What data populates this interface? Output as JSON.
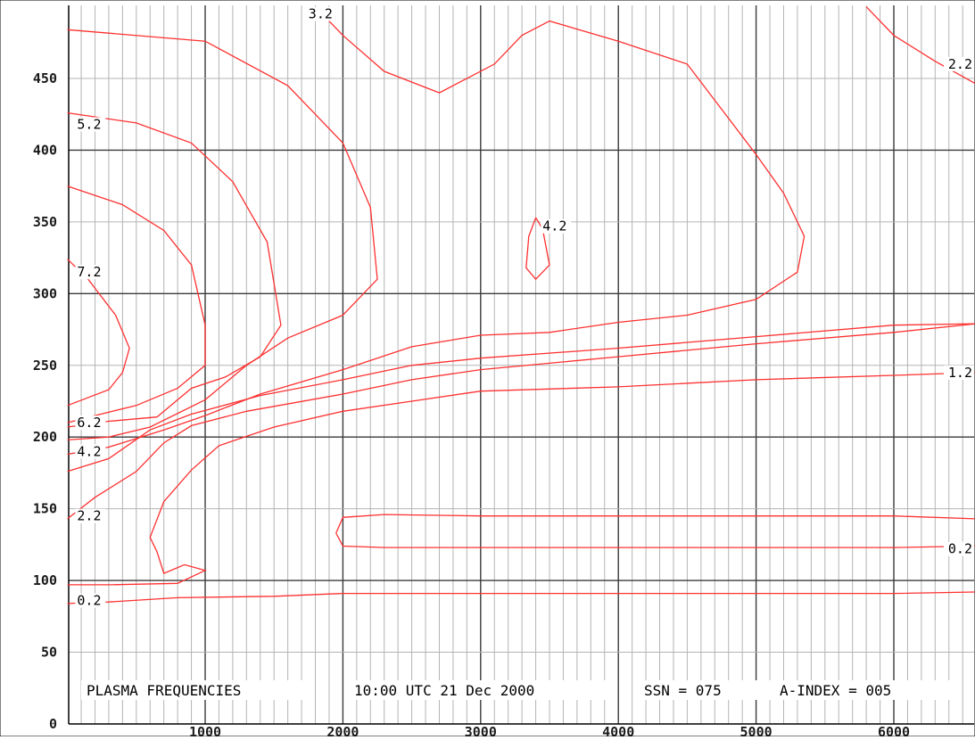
{
  "chart_data": {
    "type": "contour",
    "title": "PLASMA FREQUENCIES",
    "info": {
      "time": "10:00 UTC 21 Dec 2000",
      "ssn": "SSN = 075",
      "a_index": "A-INDEX = 005"
    },
    "xlim": [
      0,
      6600
    ],
    "ylim": [
      0,
      500
    ],
    "x_ticks": [
      1000,
      2000,
      3000,
      4000,
      5000,
      6000
    ],
    "y_ticks": [
      0,
      50,
      100,
      150,
      200,
      250,
      300,
      350,
      400,
      450
    ],
    "grid": {
      "major": true,
      "minor_x_step": 100
    },
    "line_color": "#ff3030",
    "contours": [
      {
        "label": "0.2",
        "points": [
          [
            0,
            84
          ],
          [
            300,
            85
          ],
          [
            800,
            88
          ],
          [
            1500,
            89
          ],
          [
            2000,
            91
          ],
          [
            2500,
            91
          ],
          [
            3000,
            91
          ],
          [
            4000,
            91
          ],
          [
            5000,
            91
          ],
          [
            6000,
            91
          ],
          [
            6600,
            92
          ]
        ]
      },
      {
        "label": "0.2",
        "points": [
          [
            1950,
            133
          ],
          [
            2000,
            144
          ],
          [
            2300,
            146
          ],
          [
            3000,
            145
          ],
          [
            4000,
            145
          ],
          [
            5000,
            145
          ],
          [
            6000,
            145
          ],
          [
            6600,
            143
          ],
          [
            6600,
            124
          ],
          [
            6000,
            123
          ],
          [
            5000,
            123
          ],
          [
            4000,
            123
          ],
          [
            3000,
            123
          ],
          [
            2300,
            123
          ],
          [
            2000,
            124
          ],
          [
            1950,
            133
          ]
        ]
      },
      {
        "label": "1.2",
        "points": [
          [
            0,
            97
          ],
          [
            300,
            97
          ],
          [
            800,
            98
          ],
          [
            1000,
            107
          ],
          [
            850,
            111
          ],
          [
            700,
            105
          ],
          [
            650,
            120
          ],
          [
            600,
            130
          ],
          [
            700,
            155
          ],
          [
            900,
            177
          ],
          [
            1100,
            194
          ],
          [
            1500,
            207
          ],
          [
            2000,
            218
          ],
          [
            2500,
            225
          ],
          [
            3000,
            232
          ],
          [
            4000,
            235
          ],
          [
            5000,
            240
          ],
          [
            6000,
            243
          ],
          [
            6600,
            245
          ]
        ]
      },
      {
        "label": "2.2",
        "points": [
          [
            0,
            143
          ],
          [
            200,
            158
          ],
          [
            500,
            176
          ],
          [
            700,
            196
          ],
          [
            900,
            208
          ],
          [
            1300,
            218
          ],
          [
            2000,
            230
          ],
          [
            2500,
            240
          ],
          [
            3000,
            247
          ],
          [
            4000,
            256
          ],
          [
            5000,
            265
          ],
          [
            6000,
            273
          ],
          [
            6600,
            279
          ]
        ]
      },
      {
        "label": "",
        "points": [
          [
            0,
            176
          ],
          [
            300,
            185
          ],
          [
            600,
            205
          ],
          [
            900,
            216
          ],
          [
            1400,
            229
          ],
          [
            2000,
            240
          ],
          [
            2500,
            250
          ],
          [
            3000,
            255
          ],
          [
            4000,
            262
          ],
          [
            5000,
            270
          ],
          [
            6000,
            278
          ],
          [
            6600,
            279
          ]
        ]
      },
      {
        "label": "3.2",
        "points": [
          [
            0,
            188
          ],
          [
            300,
            193
          ],
          [
            700,
            205
          ],
          [
            1000,
            215
          ],
          [
            1400,
            230
          ],
          [
            2000,
            247
          ],
          [
            2500,
            263
          ],
          [
            3000,
            271
          ],
          [
            3500,
            273
          ],
          [
            4000,
            280
          ],
          [
            4500,
            285
          ],
          [
            5000,
            296
          ],
          [
            5300,
            315
          ],
          [
            5350,
            340
          ],
          [
            5200,
            370
          ],
          [
            5000,
            397
          ],
          [
            4500,
            460
          ],
          [
            4000,
            476
          ],
          [
            3500,
            490
          ],
          [
            3300,
            480
          ],
          [
            3100,
            460
          ],
          [
            2700,
            440
          ],
          [
            2300,
            455
          ],
          [
            2000,
            480
          ],
          [
            1800,
            500
          ]
        ]
      },
      {
        "label": "4.2",
        "points": [
          [
            0,
            198
          ],
          [
            300,
            200
          ],
          [
            600,
            207
          ],
          [
            1000,
            226
          ],
          [
            1300,
            250
          ],
          [
            1600,
            269
          ],
          [
            2000,
            285
          ],
          [
            2250,
            310
          ],
          [
            2200,
            360
          ],
          [
            2000,
            405
          ],
          [
            1600,
            445
          ],
          [
            1000,
            476
          ],
          [
            0,
            484
          ]
        ]
      },
      {
        "label": "5.2",
        "points": [
          [
            0,
            207
          ],
          [
            300,
            211
          ],
          [
            650,
            214
          ],
          [
            900,
            234
          ],
          [
            1150,
            242
          ],
          [
            1400,
            256
          ],
          [
            1550,
            278
          ],
          [
            1450,
            336
          ],
          [
            1200,
            378
          ],
          [
            900,
            405
          ],
          [
            500,
            419
          ],
          [
            0,
            426
          ]
        ]
      },
      {
        "label": "6.2",
        "points": [
          [
            0,
            210
          ],
          [
            200,
            215
          ],
          [
            500,
            222
          ],
          [
            800,
            234
          ],
          [
            1000,
            250
          ],
          [
            1000,
            278
          ],
          [
            900,
            320
          ],
          [
            700,
            344
          ],
          [
            400,
            362
          ],
          [
            0,
            375
          ]
        ]
      },
      {
        "label": "7.2",
        "points": [
          [
            0,
            222
          ],
          [
            300,
            233
          ],
          [
            400,
            245
          ],
          [
            450,
            262
          ],
          [
            350,
            285
          ],
          [
            150,
            310
          ],
          [
            0,
            324
          ]
        ]
      },
      {
        "label": "4.2",
        "points": [
          [
            3400,
            353
          ],
          [
            3350,
            340
          ],
          [
            3330,
            318
          ],
          [
            3400,
            310
          ],
          [
            3500,
            320
          ],
          [
            3450,
            345
          ],
          [
            3400,
            353
          ]
        ]
      },
      {
        "label": "2.2",
        "points": [
          [
            5800,
            500
          ],
          [
            6000,
            480
          ],
          [
            6300,
            462
          ],
          [
            6600,
            446
          ]
        ]
      }
    ],
    "contour_labels": [
      {
        "text": "3.2",
        "x": 1750,
        "y": 495
      },
      {
        "text": "5.2",
        "x": 70,
        "y": 418
      },
      {
        "text": "7.2",
        "x": 70,
        "y": 315
      },
      {
        "text": "6.2",
        "x": 70,
        "y": 210
      },
      {
        "text": "4.2",
        "x": 70,
        "y": 190
      },
      {
        "text": "2.2",
        "x": 70,
        "y": 145
      },
      {
        "text": "0.2",
        "x": 70,
        "y": 86
      },
      {
        "text": "4.2",
        "x": 3450,
        "y": 347
      },
      {
        "text": "2.2",
        "x": 6600,
        "y": 460
      },
      {
        "text": "1.2",
        "x": 6600,
        "y": 245
      },
      {
        "text": "0.2",
        "x": 6600,
        "y": 122
      }
    ]
  }
}
